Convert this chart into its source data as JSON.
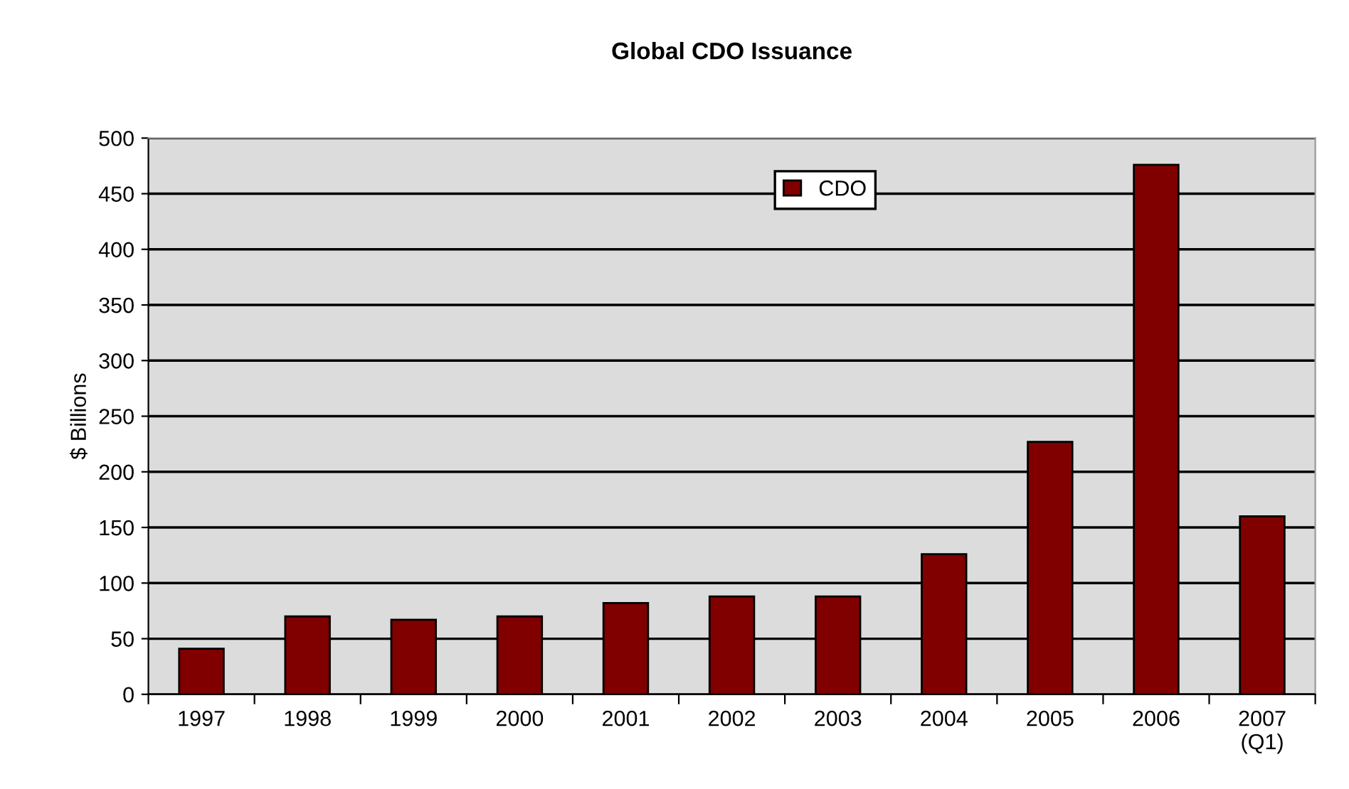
{
  "chart_data": {
    "type": "bar",
    "title": "Global CDO Issuance",
    "ylabel": "$ Billions",
    "categories": [
      "1997",
      "1998",
      "1999",
      "2000",
      "2001",
      "2002",
      "2003",
      "2004",
      "2005",
      "2006",
      "2007\n(Q1)"
    ],
    "series": [
      {
        "name": "CDO",
        "color": "#800000",
        "values": [
          41,
          70,
          67,
          70,
          82,
          88,
          88,
          126,
          227,
          476,
          160
        ]
      }
    ],
    "ylim": [
      0,
      500
    ],
    "yticks": [
      0,
      50,
      100,
      150,
      200,
      250,
      300,
      350,
      400,
      450,
      500
    ],
    "grid": "y",
    "legend": "top"
  }
}
